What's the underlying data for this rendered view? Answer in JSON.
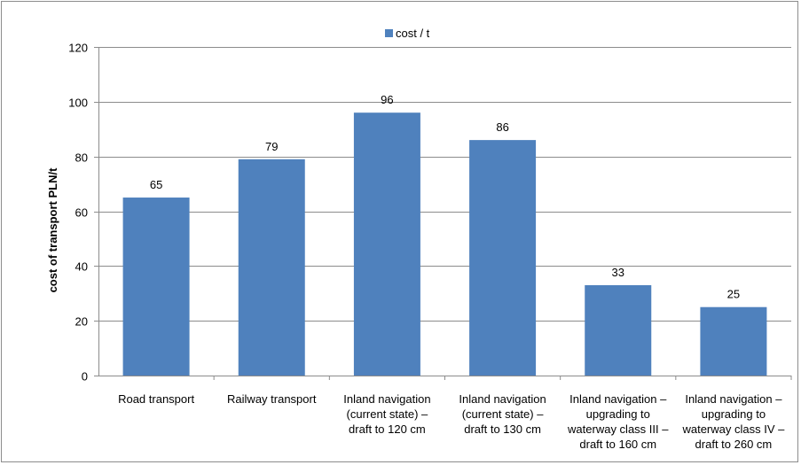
{
  "chart_data": {
    "type": "bar",
    "title": "",
    "xlabel": "",
    "ylabel": "cost of transport PLN/t",
    "ylim": [
      0,
      120
    ],
    "yticks": [
      0,
      20,
      40,
      60,
      80,
      100,
      120
    ],
    "grid": true,
    "legend_position": "top",
    "categories": [
      [
        "Road transport"
      ],
      [
        "Railway transport"
      ],
      [
        "Inland navigation",
        "(current state) –",
        "draft to 120 cm"
      ],
      [
        "Inland navigation",
        "(current state) –",
        "draft to 130 cm"
      ],
      [
        "Inland navigation –",
        "upgrading to",
        "waterway class III –",
        "draft to 160 cm"
      ],
      [
        "Inland navigation –",
        "upgrading to",
        "waterway class IV –",
        "draft to 260 cm"
      ]
    ],
    "series": [
      {
        "name": "cost / t",
        "color": "#4f81bd",
        "values": [
          65,
          79,
          96,
          86,
          33,
          25
        ]
      }
    ]
  }
}
